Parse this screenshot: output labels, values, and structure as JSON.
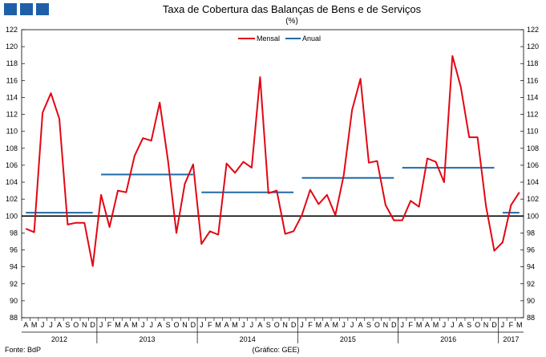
{
  "header": {
    "title": "Taxa de Cobertura das Balanças de Bens e de Serviços",
    "unit": "(%)",
    "logo_color": "#1f5fa8"
  },
  "footer": {
    "source": "Fonte: BdP",
    "credit": "(Gráfico: GEE)"
  },
  "chart_data": {
    "type": "line",
    "ylim": [
      88,
      122
    ],
    "yticks": [
      88,
      90,
      92,
      94,
      96,
      98,
      100,
      102,
      104,
      106,
      108,
      110,
      112,
      114,
      116,
      118,
      120,
      122
    ],
    "reference_line": 100,
    "legend": {
      "position": "top-center",
      "entries": [
        "Mensal",
        "Anual"
      ]
    },
    "month_labels": [
      "A",
      "M",
      "J",
      "J",
      "A",
      "S",
      "O",
      "N",
      "D",
      "J",
      "F",
      "M",
      "A",
      "M",
      "J",
      "J",
      "A",
      "S",
      "O",
      "N",
      "D",
      "J",
      "F",
      "M",
      "A",
      "M",
      "J",
      "J",
      "A",
      "S",
      "O",
      "N",
      "D",
      "J",
      "F",
      "M",
      "A",
      "M",
      "J",
      "J",
      "A",
      "S",
      "O",
      "N",
      "D",
      "J",
      "F",
      "M",
      "A",
      "M",
      "J",
      "J",
      "A",
      "S",
      "O",
      "N",
      "D",
      "J",
      "F",
      "M"
    ],
    "years": [
      {
        "label": "2012",
        "start": 0,
        "end": 8
      },
      {
        "label": "2013",
        "start": 9,
        "end": 20
      },
      {
        "label": "2014",
        "start": 21,
        "end": 32
      },
      {
        "label": "2015",
        "start": 33,
        "end": 44
      },
      {
        "label": "2016",
        "start": 45,
        "end": 56
      },
      {
        "label": "2017",
        "start": 57,
        "end": 59
      }
    ],
    "series": [
      {
        "name": "Mensal",
        "color": "#e30613",
        "values": [
          98.5,
          98.1,
          112.2,
          114.5,
          111.5,
          99.0,
          99.2,
          99.2,
          94.1,
          102.5,
          98.7,
          103.0,
          102.8,
          107.1,
          109.2,
          108.9,
          113.4,
          106.5,
          98.0,
          103.8,
          106.1,
          96.7,
          98.2,
          97.8,
          106.2,
          105.1,
          106.4,
          105.7,
          116.4,
          102.7,
          103.0,
          97.9,
          98.2,
          100.1,
          103.1,
          101.4,
          102.5,
          100.1,
          104.8,
          112.5,
          116.2,
          106.3,
          106.5,
          101.3,
          99.5,
          99.5,
          101.8,
          101.1,
          106.8,
          106.4,
          104.0,
          118.9,
          115.2,
          109.3,
          109.3,
          101.2,
          95.9,
          96.9,
          101.3,
          102.8
        ]
      },
      {
        "name": "Anual",
        "color": "#1f6aa5",
        "segments": [
          {
            "start": 0,
            "end": 8,
            "value": 100.4
          },
          {
            "start": 9,
            "end": 20,
            "value": 104.9
          },
          {
            "start": 21,
            "end": 32,
            "value": 102.8
          },
          {
            "start": 33,
            "end": 44,
            "value": 104.5
          },
          {
            "start": 45,
            "end": 56,
            "value": 105.7
          },
          {
            "start": 57,
            "end": 59,
            "value": 100.4
          }
        ]
      }
    ]
  }
}
